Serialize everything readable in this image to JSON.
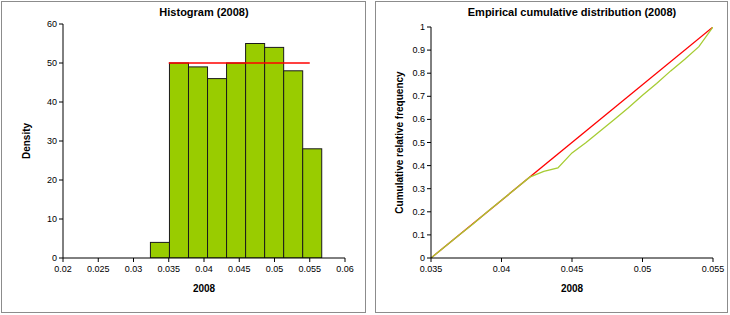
{
  "chart_data": [
    {
      "type": "histogram",
      "title": "Histogram (2008)",
      "x_label": "2008",
      "y_label": "Density",
      "bins": [
        0.0324,
        0.0351,
        0.0378,
        0.0405,
        0.0432,
        0.0459,
        0.0486,
        0.0513,
        0.054,
        0.0567
      ],
      "values": [
        4,
        50,
        49,
        46,
        50,
        55,
        54,
        48,
        28
      ],
      "color": "#99cc00",
      "series": [
        {
          "type": "line",
          "color": "#ff0000",
          "x": [
            0.035,
            0.055
          ],
          "values": [
            50,
            50
          ]
        }
      ],
      "xlim": [
        0.02,
        0.06
      ],
      "xticks": [
        0.02,
        0.025,
        0.03,
        0.035,
        0.04,
        0.045,
        0.05,
        0.055,
        0.06
      ],
      "ylim": [
        0,
        60
      ],
      "yticks": [
        0,
        10,
        20,
        30,
        40,
        50,
        60
      ],
      "grid": false
    },
    {
      "type": "line",
      "title": "Empirical cumulative distribution (2008)",
      "x_label": "2008",
      "y_label": "Cumulative relative frequency",
      "series": [
        {
          "color": "#ff0000",
          "x": [
            0.035,
            0.055
          ],
          "values": [
            0,
            1
          ]
        },
        {
          "color": "#a6cc33",
          "x": [
            0.035,
            0.036,
            0.037,
            0.038,
            0.039,
            0.04,
            0.041,
            0.042,
            0.043,
            0.044,
            0.045,
            0.046,
            0.047,
            0.048,
            0.049,
            0.05,
            0.051,
            0.052,
            0.053,
            0.054,
            0.055
          ],
          "values": [
            0,
            0.05,
            0.1,
            0.148,
            0.2,
            0.25,
            0.3,
            0.35,
            0.375,
            0.39,
            0.455,
            0.5,
            0.55,
            0.6,
            0.65,
            0.705,
            0.755,
            0.81,
            0.86,
            0.915,
            1
          ]
        }
      ],
      "xlim": [
        0.035,
        0.055
      ],
      "xticks": [
        0.035,
        0.04,
        0.045,
        0.05,
        0.055
      ],
      "ylim": [
        0,
        1
      ],
      "yticks": [
        0,
        0.1,
        0.2,
        0.3,
        0.4,
        0.5,
        0.6,
        0.7,
        0.8,
        0.9,
        1
      ],
      "grid": false
    }
  ]
}
